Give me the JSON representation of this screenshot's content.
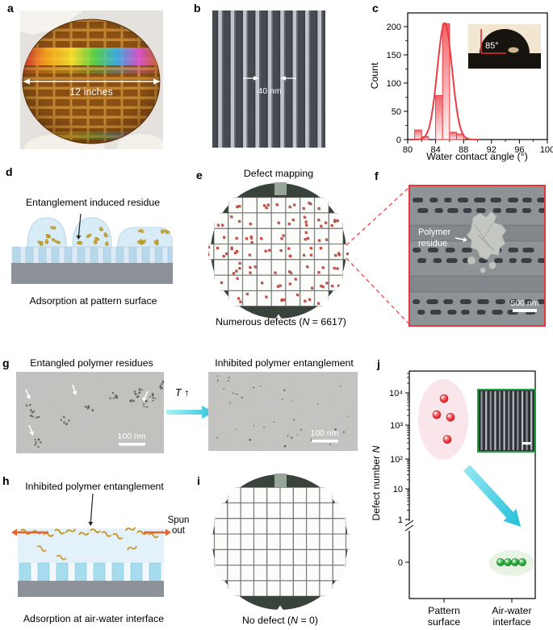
{
  "figure": {
    "panels": {
      "a": {
        "letter": "a",
        "label": "12 inches"
      },
      "b": {
        "letter": "b",
        "label": "40 nm"
      },
      "c": {
        "letter": "c"
      },
      "d": {
        "letter": "d",
        "title": "Entanglement induced residue",
        "caption": "Adsorption at pattern surface"
      },
      "e": {
        "letter": "e",
        "title": "Defect mapping",
        "caption_pre": "Numerous defects (",
        "caption_var": "N",
        "caption_post": " = 6617)"
      },
      "f": {
        "letter": "f",
        "label_line1": "Polymer",
        "label_line2": "residue",
        "scale_label": "500 nm"
      },
      "g": {
        "letter": "g",
        "left_title": "Entangled polymer residues",
        "right_title": "Inhibited polymer entanglement",
        "left_scale": "100 nm",
        "right_scale": "100 nm",
        "temp_label": "T",
        "temp_arrow": "↑"
      },
      "h": {
        "letter": "h",
        "title": "Inhibited polymer entanglement",
        "spun_line1": "Spun",
        "spun_line2": "out",
        "caption": "Adsorption at air-water interface"
      },
      "i": {
        "letter": "i",
        "caption_pre": "No defect (",
        "caption_var": "N",
        "caption_post": " = 0)"
      },
      "j": {
        "letter": "j",
        "ylabel_pre": "Defect number ",
        "ylabel_var": "N",
        "cat1_line1": "Pattern",
        "cat1_line2": "surface",
        "cat2_line1": "Air-water",
        "cat2_line2": "interface"
      }
    },
    "colors": {
      "accent_red": "#ee3b43",
      "defect_red": "#d9534a",
      "wafer_dark": "#3a423c",
      "notch_gray": "#98a69a",
      "cyan": "#35cde2",
      "spun_orange": "#e8622c",
      "green": "#1fa02e",
      "inset_border_green": "#1e9e40",
      "sem_border_red": "#e8363d"
    },
    "wafer_maps": {
      "e": {
        "rows_dies": [
          7,
          9,
          9,
          11,
          9,
          9,
          7
        ],
        "has_defects": true,
        "seed": 11,
        "total_defects": 6617
      },
      "i": {
        "rows_dies": [
          8,
          10,
          10,
          12,
          10,
          10,
          8
        ],
        "has_defects": false,
        "total_defects": 0
      }
    }
  },
  "chart_data": [
    {
      "type": "bar",
      "panel": "c",
      "title": "",
      "xlabel": "Water contact angle (°)",
      "ylabel": "Count",
      "xlim": [
        80,
        100
      ],
      "ylim": [
        0,
        224
      ],
      "x_ticks": [
        80,
        84,
        88,
        92,
        96,
        100
      ],
      "y_ticks": [
        0,
        50,
        100,
        150,
        200
      ],
      "bins": [
        {
          "x0": 81,
          "x1": 82,
          "count": 17
        },
        {
          "x0": 82,
          "x1": 83,
          "count": 5
        },
        {
          "x0": 84,
          "x1": 85,
          "count": 78
        },
        {
          "x0": 85,
          "x1": 86,
          "count": 205
        },
        {
          "x0": 86,
          "x1": 87,
          "count": 13
        },
        {
          "x0": 87,
          "x1": 88,
          "count": 10
        }
      ],
      "fit": {
        "shape": "gaussian",
        "mean": 85.3,
        "sigma": 1.05,
        "peak": 207
      },
      "inset_label": "85°"
    },
    {
      "type": "scatter",
      "panel": "j",
      "ylabel": "Defect number N",
      "y_scale": "log_with_break",
      "y_ticks": [
        "10⁴",
        "10³",
        "10²",
        "10",
        "1",
        "0"
      ],
      "categories": [
        "Pattern surface",
        "Air-water interface"
      ],
      "series": [
        {
          "name": "Pattern surface",
          "color": "#e02830",
          "values": [
            6617,
            2100,
            1750,
            360
          ]
        },
        {
          "name": "Air-water interface",
          "color": "#1fa02e",
          "values": [
            0,
            0,
            0,
            0
          ]
        }
      ]
    }
  ]
}
